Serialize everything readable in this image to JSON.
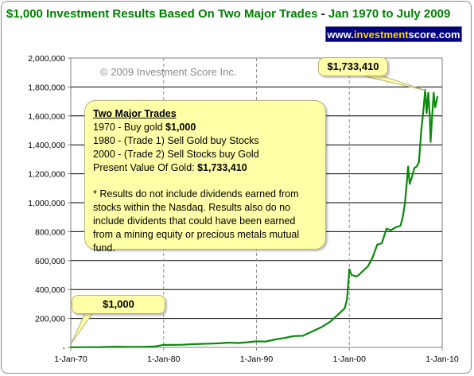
{
  "title": {
    "main": "$1,000 Investment Results Based On Two Major Trades",
    "separator": " - ",
    "range": "Jan 1970 to July 2009"
  },
  "website": {
    "prefix": "www.",
    "highlight": "investment",
    "suffix": "score.com"
  },
  "copyright": "© 2009 Investment Score Inc.",
  "note": {
    "heading": "Two Major Trades",
    "line1_text": "1970 - Buy gold ",
    "line1_value": "$1,000",
    "line2": "1980 - (Trade 1) Sell Gold buy Stocks",
    "line3": "2000 - (Trade 2) Sell Stocks buy Gold",
    "line4_text": "Present Value Of Gold: ",
    "line4_value": "$1,733,410",
    "disclaimer": "* Results do not include dividends earned from stocks within the Nasdaq.  Results also do no include dividents that could have been earned from a mining equity or precious metals mutual fund."
  },
  "colors": {
    "series": "#0a8a0a",
    "title": "#008000",
    "banner": "#000080",
    "callout": "#ffffa8"
  },
  "chart_data": {
    "type": "line",
    "ylim": [
      0,
      2000000
    ],
    "xlim": [
      "1970-01",
      "2010-01"
    ],
    "x_ticks": [
      "1-Jan-70",
      "1-Jan-80",
      "1-Jan-90",
      "1-Jan-00",
      "1-Jan-10"
    ],
    "y_ticks": [
      "-",
      "200,000",
      "400,000",
      "600,000",
      "800,000",
      "1,000,000",
      "1,200,000",
      "1,400,000",
      "1,600,000",
      "1,800,000",
      "2,000,000"
    ],
    "grid": "horizontal solid, vertical dashed",
    "annotations": [
      {
        "label": "$1,000",
        "x": "1970-01",
        "y": 1000
      },
      {
        "label": "$1,733,410",
        "x": "2008-03",
        "y": 1780000
      }
    ],
    "series": [
      {
        "points": [
          [
            "1970-01",
            1000
          ],
          [
            "1971-01",
            1100
          ],
          [
            "1972-01",
            1600
          ],
          [
            "1973-01",
            1800
          ],
          [
            "1974-01",
            3300
          ],
          [
            "1975-01",
            5100
          ],
          [
            "1976-01",
            3500
          ],
          [
            "1977-01",
            3800
          ],
          [
            "1978-01",
            4600
          ],
          [
            "1979-01",
            6200
          ],
          [
            "1980-01",
            17800
          ],
          [
            "1981-01",
            17000
          ],
          [
            "1982-01",
            18000
          ],
          [
            "1983-01",
            22000
          ],
          [
            "1984-01",
            24000
          ],
          [
            "1985-01",
            26000
          ],
          [
            "1986-01",
            28000
          ],
          [
            "1987-01",
            33000
          ],
          [
            "1988-01",
            30000
          ],
          [
            "1989-01",
            35000
          ],
          [
            "1990-01",
            42000
          ],
          [
            "1991-01",
            40000
          ],
          [
            "1992-01",
            55000
          ],
          [
            "1993-01",
            65000
          ],
          [
            "1994-01",
            78000
          ],
          [
            "1995-01",
            80000
          ],
          [
            "1996-01",
            110000
          ],
          [
            "1997-01",
            140000
          ],
          [
            "1998-01",
            180000
          ],
          [
            "1999-01",
            240000
          ],
          [
            "1999-07",
            270000
          ],
          [
            "1999-10",
            330000
          ],
          [
            "2000-01",
            540000
          ],
          [
            "2000-04",
            500000
          ],
          [
            "2000-10",
            490000
          ],
          [
            "2001-01",
            500000
          ],
          [
            "2001-07",
            530000
          ],
          [
            "2002-01",
            560000
          ],
          [
            "2002-07",
            620000
          ],
          [
            "2003-01",
            710000
          ],
          [
            "2003-07",
            720000
          ],
          [
            "2004-01",
            820000
          ],
          [
            "2004-07",
            810000
          ],
          [
            "2005-01",
            830000
          ],
          [
            "2005-07",
            840000
          ],
          [
            "2005-10",
            900000
          ],
          [
            "2006-01",
            1000000
          ],
          [
            "2006-05",
            1250000
          ],
          [
            "2006-07",
            1130000
          ],
          [
            "2006-10",
            1180000
          ],
          [
            "2007-01",
            1240000
          ],
          [
            "2007-04",
            1250000
          ],
          [
            "2007-07",
            1280000
          ],
          [
            "2007-10",
            1500000
          ],
          [
            "2008-01",
            1650000
          ],
          [
            "2008-03",
            1780000
          ],
          [
            "2008-05",
            1620000
          ],
          [
            "2008-07",
            1760000
          ],
          [
            "2008-09",
            1600000
          ],
          [
            "2008-10",
            1420000
          ],
          [
            "2008-12",
            1600000
          ],
          [
            "2009-02",
            1760000
          ],
          [
            "2009-04",
            1660000
          ],
          [
            "2009-07",
            1733410
          ]
        ]
      }
    ]
  }
}
